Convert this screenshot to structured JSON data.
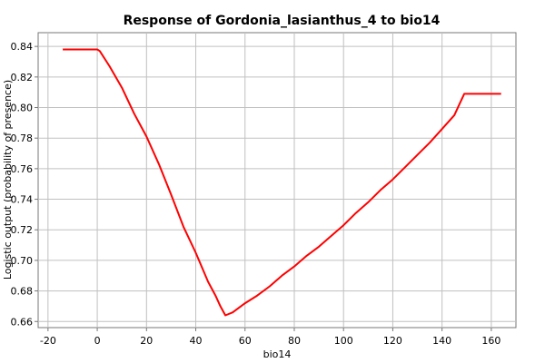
{
  "chart_data": {
    "type": "line",
    "title": "Response of Gordonia_lasianthus_4 to bio14",
    "xlabel": "bio14",
    "ylabel": "Logistic output (probability of presence)",
    "xlim": [
      -24,
      170
    ],
    "ylim": [
      0.656,
      0.849
    ],
    "x_ticks": [
      -20,
      0,
      20,
      40,
      60,
      80,
      100,
      120,
      140,
      160
    ],
    "x_tick_labels": [
      "-20",
      "0",
      "20",
      "40",
      "60",
      "80",
      "100",
      "120",
      "140",
      "160"
    ],
    "y_ticks": [
      0.66,
      0.68,
      0.7,
      0.72,
      0.74,
      0.76,
      0.78,
      0.8,
      0.82,
      0.84
    ],
    "y_tick_labels": [
      "0.66",
      "0.68",
      "0.70",
      "0.72",
      "0.74",
      "0.76",
      "0.78",
      "0.80",
      "0.82",
      "0.84"
    ],
    "grid": true,
    "series": [
      {
        "color": "#ff0000",
        "x": [
          -14,
          0,
          1,
          5,
          10,
          15,
          20,
          25,
          30,
          35,
          40,
          45,
          48,
          50,
          52,
          55,
          60,
          65,
          70,
          75,
          80,
          85,
          90,
          95,
          100,
          105,
          110,
          115,
          120,
          125,
          130,
          135,
          140,
          145,
          149,
          155,
          160,
          164
        ],
        "y": [
          0.838,
          0.838,
          0.837,
          0.827,
          0.813,
          0.796,
          0.781,
          0.763,
          0.743,
          0.722,
          0.705,
          0.686,
          0.677,
          0.67,
          0.664,
          0.666,
          0.672,
          0.677,
          0.683,
          0.69,
          0.696,
          0.703,
          0.709,
          0.716,
          0.723,
          0.731,
          0.738,
          0.746,
          0.753,
          0.761,
          0.769,
          0.777,
          0.786,
          0.795,
          0.809,
          0.809,
          0.809,
          0.809
        ]
      }
    ]
  }
}
